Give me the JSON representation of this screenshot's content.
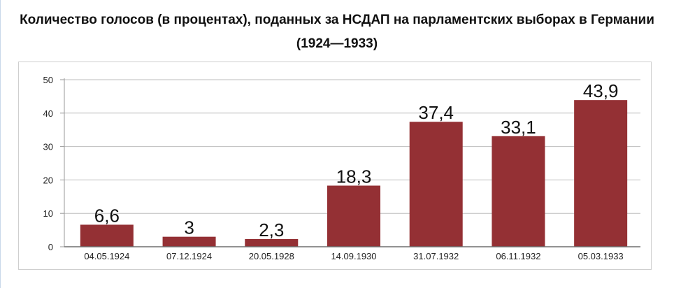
{
  "title": "Количество голосов (в процентах), поданных за НСДАП на парламентских выборах в Германии (1924—1933)",
  "colors": {
    "bar": "#943034",
    "grid": "#bdbdbd",
    "axis": "#9a9a9a"
  },
  "chart_data": {
    "type": "bar",
    "title": "Количество голосов (в процентах), поданных за НСДАП на парламентских выборах в Германии (1924—1933)",
    "categories": [
      "04.05.1924",
      "07.12.1924",
      "20.05.1928",
      "14.09.1930",
      "31.07.1932",
      "06.11.1932",
      "05.03.1933"
    ],
    "values": [
      6.6,
      3,
      2.3,
      18.3,
      37.4,
      33.1,
      43.9
    ],
    "value_labels": [
      "6,6",
      "3",
      "2,3",
      "18,3",
      "37,4",
      "33,1",
      "43,9"
    ],
    "ylim": [
      0,
      50
    ],
    "yticks": [
      0,
      10,
      20,
      30,
      40,
      50
    ],
    "xlabel": "",
    "ylabel": "",
    "grid": true,
    "legend": "none"
  }
}
